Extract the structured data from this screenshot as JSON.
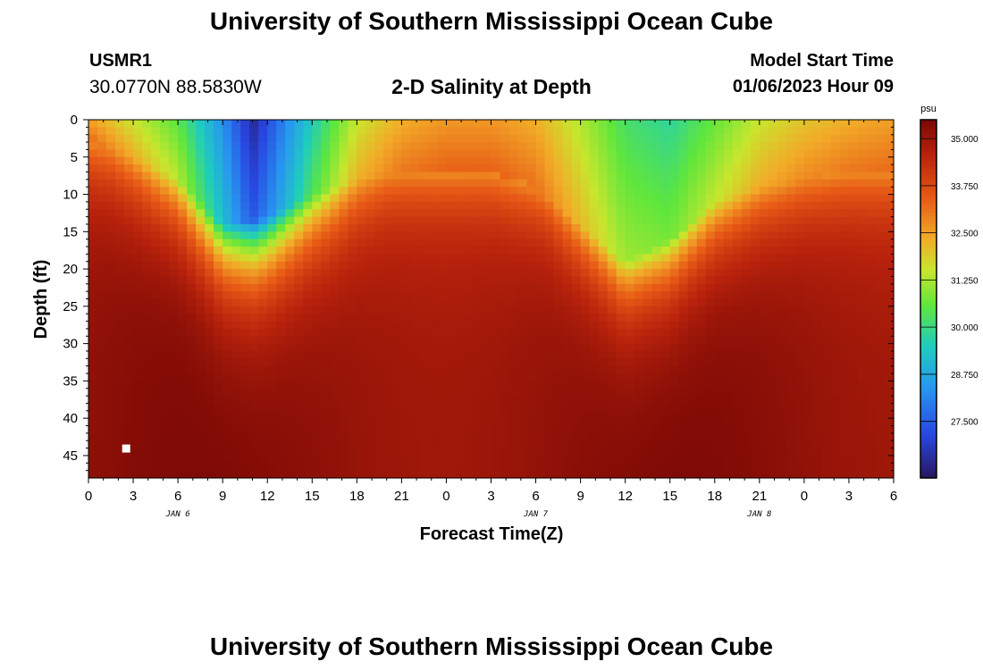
{
  "page": {
    "title": "University of Southern Mississippi Ocean Cube",
    "footer_title": "University of Southern Mississippi Ocean Cube",
    "station_id": "USMR1",
    "station_coords": "30.0770N  88.5830W",
    "chart_title": "2-D Salinity at Depth",
    "model_start_label": "Model Start Time",
    "model_start_value": "01/06/2023 Hour 09"
  },
  "chart_data": {
    "type": "heatmap",
    "title": "2-D Salinity at Depth",
    "xlabel": "Forecast Time(Z)",
    "ylabel": "Depth (ft)",
    "x_tick_labels": [
      "0",
      "3",
      "6",
      "9",
      "12",
      "15",
      "18",
      "21",
      "0",
      "3",
      "6",
      "9",
      "12",
      "15",
      "18",
      "21",
      "0",
      "3",
      "6"
    ],
    "x_date_labels": [
      {
        "label": "JAN 6",
        "hour_index": 6
      },
      {
        "label": "JAN 7",
        "hour_index": 30
      },
      {
        "label": "JAN 8",
        "hour_index": 45
      }
    ],
    "x_range_hours": [
      0,
      54
    ],
    "y_ticks": [
      0,
      5,
      10,
      15,
      20,
      25,
      30,
      35,
      40,
      45
    ],
    "y_range": [
      0,
      48
    ],
    "colorbar": {
      "unit": "psu",
      "min": 26.0,
      "max": 35.5,
      "tick_values": [
        35.0,
        33.75,
        32.5,
        31.25,
        30.0,
        28.75,
        27.5
      ],
      "tick_labels": [
        "35.000",
        "33.750",
        "32.500",
        "31.250",
        "30.000",
        "28.750",
        "27.500"
      ]
    },
    "grid_resolution": {
      "x_hours_step": 0.6,
      "depth_step_ft": 1
    },
    "surface_profile_hours": [
      0,
      3,
      6,
      9,
      11,
      12,
      15,
      18,
      21,
      24,
      27,
      30,
      33,
      36,
      39,
      42,
      45,
      48,
      51,
      54
    ],
    "surface_profile_salinity": [
      32.5,
      31.5,
      30.5,
      28.3,
      26.5,
      27.2,
      29.5,
      31.5,
      32.3,
      32.6,
      32.6,
      32.3,
      31.3,
      30.2,
      29.8,
      30.6,
      31.5,
      32.0,
      32.3,
      32.5
    ],
    "lowsal_depth_hours": [
      0,
      3,
      6,
      9,
      12,
      15,
      18,
      21,
      24,
      27,
      30,
      33,
      36,
      39,
      42,
      45,
      48,
      51,
      54
    ],
    "lowsal_depth_ft": [
      3,
      5,
      8,
      14,
      13,
      10,
      8,
      7,
      7,
      7,
      9,
      14,
      19,
      16,
      11,
      9,
      8,
      7,
      7
    ],
    "deep_salinity": 35.2,
    "missing_marker": {
      "hour": 2.5,
      "depth_ft": 44
    }
  }
}
